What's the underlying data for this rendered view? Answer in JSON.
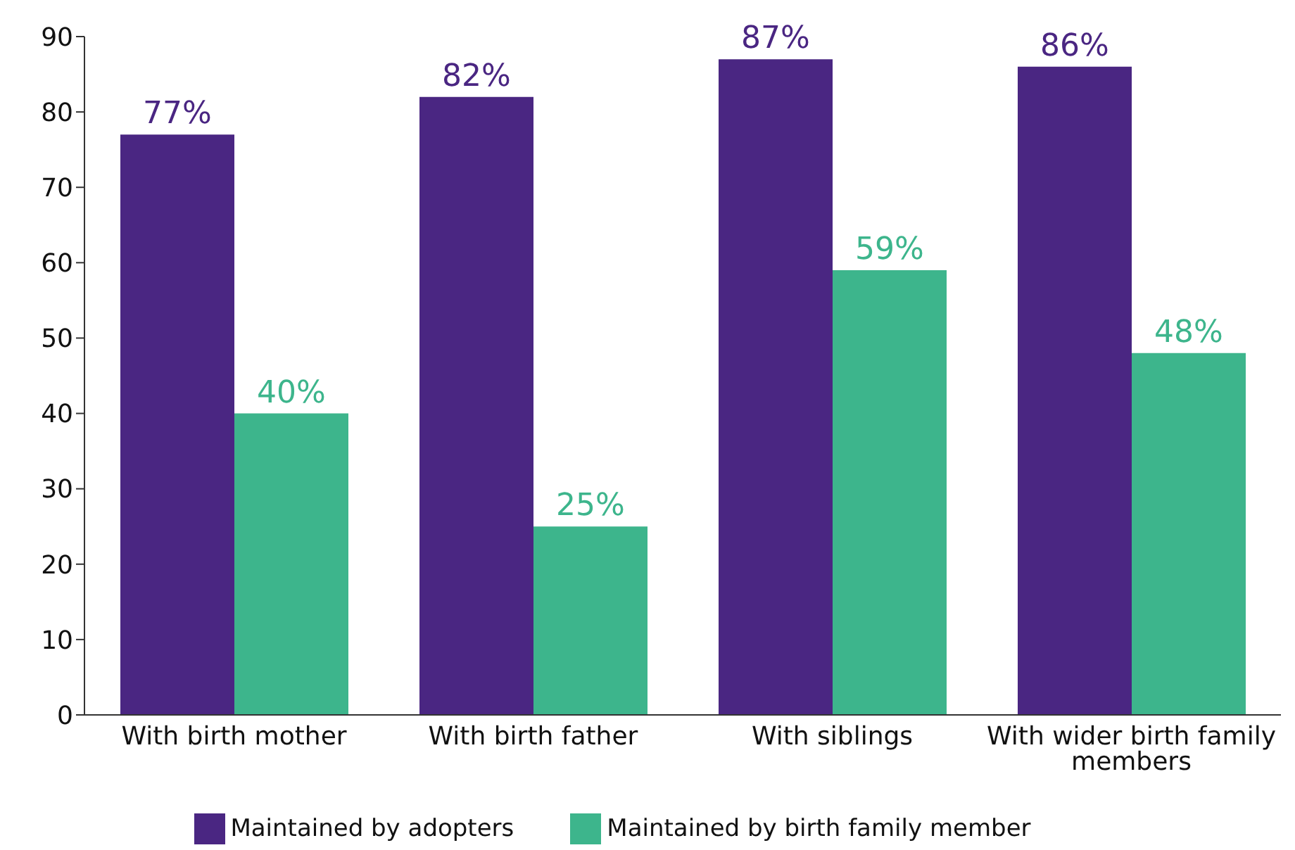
{
  "chart_data": {
    "type": "bar",
    "categories": [
      "With birth mother",
      "With birth father",
      "With siblings",
      "With wider birth family members"
    ],
    "series": [
      {
        "name": "Maintained by adopters",
        "color": "#4a2682",
        "values": [
          77,
          82,
          87,
          86
        ],
        "value_labels": [
          "77%",
          "82%",
          "87%",
          "86%"
        ]
      },
      {
        "name": "Maintained by birth family member",
        "color": "#3db58c",
        "values": [
          40,
          25,
          59,
          48
        ],
        "value_labels": [
          "40%",
          "25%",
          "59%",
          "48%"
        ]
      }
    ],
    "ylim": [
      0,
      90
    ],
    "yticks": [
      0,
      10,
      20,
      30,
      40,
      50,
      60,
      70,
      80,
      90
    ],
    "grid": false,
    "legend": "bottom"
  }
}
